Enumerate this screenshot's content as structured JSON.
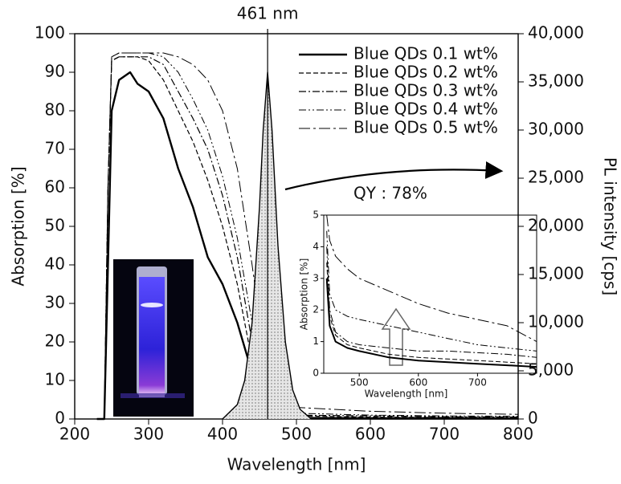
{
  "chart_data": [
    {
      "type": "line",
      "ylabel": "Absorption [%]",
      "xlabel": "Wavelength [nm]",
      "y2label": "PL intensity [cps]",
      "peak_label": "461 nm",
      "peak_x": 461,
      "qy_label": "QY : 78%",
      "legend": "upper right",
      "xlim": [
        200,
        800
      ],
      "xticks": [
        200,
        300,
        400,
        500,
        600,
        700,
        800
      ],
      "ylim": [
        0,
        100
      ],
      "yticks": [
        0,
        10,
        20,
        30,
        40,
        50,
        60,
        70,
        80,
        90,
        100
      ],
      "y2lim": [
        0,
        40000
      ],
      "y2ticks": [
        0,
        {
          "value": 5000,
          "label": "5,000"
        },
        {
          "value": 10000,
          "label": "10,000"
        },
        {
          "value": 15000,
          "label": "15,000"
        },
        {
          "value": 20000,
          "label": "20,000"
        },
        {
          "value": 25000,
          "label": "25,000"
        },
        {
          "value": 30000,
          "label": "30,000"
        },
        {
          "value": 35000,
          "label": "35,000"
        },
        {
          "value": 40000,
          "label": "40,000"
        }
      ],
      "x": [
        230,
        240,
        245,
        250,
        260,
        275,
        285,
        300,
        320,
        340,
        360,
        380,
        400,
        420,
        440,
        460,
        480,
        500,
        600,
        700,
        800
      ],
      "series": [
        {
          "name": "Blue QDs 0.1 wt%",
          "color": "#000000",
          "dash": "solid",
          "width": 2.4,
          "values": [
            0,
            0,
            40,
            80,
            88,
            90,
            87,
            85,
            78,
            65,
            55,
            42,
            35,
            25,
            12,
            2,
            0.5,
            0.3,
            0.2,
            0.2,
            0.2
          ]
        },
        {
          "name": "Blue QDs 0.2 wt%",
          "color": "#000000",
          "dash": "dashed",
          "width": 1.2,
          "values": [
            0,
            0,
            60,
            93,
            94,
            94,
            94,
            93,
            88,
            80,
            72,
            62,
            50,
            35,
            15,
            3,
            1,
            0.8,
            0.5,
            0.4,
            0.4
          ]
        },
        {
          "name": "Blue QDs 0.3 wt%",
          "color": "#000000",
          "dash": "dashdot",
          "width": 1.2,
          "values": [
            0,
            0,
            60,
            93,
            94,
            94,
            94,
            94,
            92,
            85,
            78,
            70,
            58,
            42,
            20,
            4,
            1.5,
            1,
            0.8,
            0.6,
            0.5
          ]
        },
        {
          "name": "Blue QDs 0.4 wt%",
          "color": "#000000",
          "dash": "dashdotdot",
          "width": 1,
          "values": [
            0,
            0,
            60,
            94,
            95,
            95,
            95,
            95,
            94,
            90,
            83,
            75,
            63,
            47,
            25,
            6,
            2,
            1.5,
            1,
            0.8,
            0.7
          ]
        },
        {
          "name": "Blue QDs 0.5 wt%",
          "color": "#000000",
          "dash": "longdash",
          "width": 1,
          "values": [
            0,
            0,
            60,
            94,
            95,
            95,
            95,
            95,
            95,
            94,
            92,
            88,
            80,
            65,
            40,
            12,
            4,
            3,
            2,
            1.5,
            1.2
          ]
        },
        {
          "axis": "y2",
          "color": "#000000",
          "dash": "solid",
          "width": 1.4,
          "area": true,
          "x": [
            400,
            420,
            430,
            440,
            450,
            455,
            461,
            467,
            475,
            485,
            495,
            505,
            520,
            800
          ],
          "values": [
            0,
            1500,
            4000,
            10000,
            22000,
            30000,
            36000,
            30000,
            18000,
            8000,
            3000,
            1000,
            0,
            0
          ]
        }
      ]
    },
    {
      "type": "line",
      "ylabel": "Absorption [%]",
      "xlabel": "Wavelength [nm]",
      "xlim": [
        440,
        800
      ],
      "xticks": [
        500,
        600,
        700
      ],
      "ylim": [
        0,
        5
      ],
      "yticks": [
        0,
        1,
        2,
        3,
        4,
        5
      ],
      "x": [
        445,
        450,
        460,
        480,
        500,
        550,
        600,
        650,
        700,
        750,
        800
      ],
      "series": [
        {
          "color": "#000000",
          "dash": "solid",
          "width": 2,
          "values": [
            3,
            1.5,
            1.0,
            0.8,
            0.7,
            0.5,
            0.4,
            0.35,
            0.3,
            0.25,
            0.2
          ]
        },
        {
          "color": "#000000",
          "dash": "dashed",
          "width": 1,
          "values": [
            3.5,
            1.8,
            1.2,
            0.9,
            0.8,
            0.6,
            0.5,
            0.45,
            0.4,
            0.35,
            0.3
          ]
        },
        {
          "color": "#000000",
          "dash": "dashdot",
          "width": 1,
          "values": [
            4,
            2,
            1.3,
            1.0,
            0.9,
            0.8,
            0.7,
            0.7,
            0.65,
            0.6,
            0.5
          ]
        },
        {
          "color": "#000000",
          "dash": "dashdotdot",
          "width": 1,
          "values": [
            4.5,
            2.5,
            2.0,
            1.8,
            1.7,
            1.5,
            1.3,
            1.1,
            0.9,
            0.8,
            0.7
          ]
        },
        {
          "color": "#000000",
          "dash": "longdash",
          "width": 1,
          "values": [
            5,
            4.2,
            3.7,
            3.3,
            3.0,
            2.6,
            2.2,
            1.9,
            1.7,
            1.5,
            1.0
          ]
        }
      ]
    }
  ]
}
